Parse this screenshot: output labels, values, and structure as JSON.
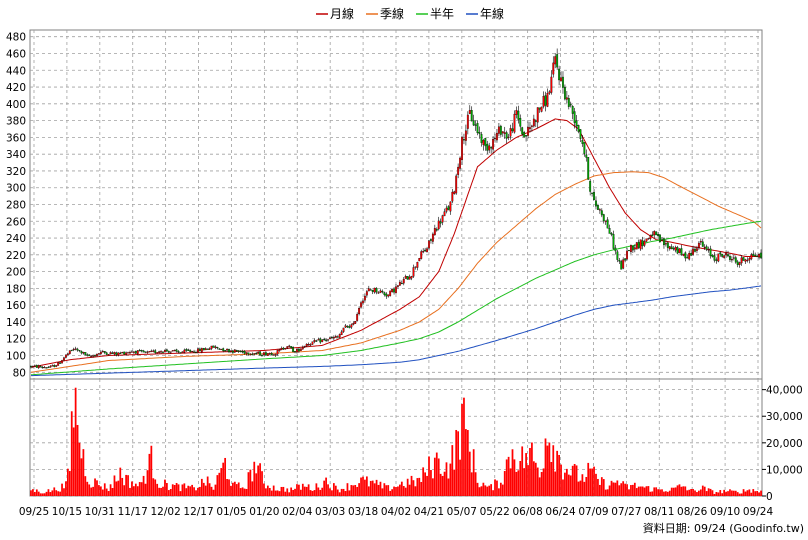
{
  "chart_data": {
    "type": "candlestick",
    "legend": [
      {
        "label": "月線",
        "color": "#c00000"
      },
      {
        "label": "季線",
        "color": "#e87020"
      },
      {
        "label": "半年",
        "color": "#20c020"
      },
      {
        "label": "年線",
        "color": "#2050c0"
      }
    ],
    "footer": "資料日期: 09/24  (Goodinfo.tw)",
    "price_axis": {
      "ylim": [
        72,
        488
      ],
      "ticks": [
        480,
        460,
        440,
        420,
        400,
        380,
        360,
        340,
        320,
        300,
        280,
        260,
        240,
        220,
        200,
        180,
        160,
        140,
        120,
        100,
        80
      ]
    },
    "volume_axis": {
      "ylim": [
        0,
        44000
      ],
      "ticks": [
        "40,000",
        "30,000",
        "20,000",
        "10,000",
        "0"
      ],
      "tick_values": [
        40000,
        30000,
        20000,
        10000,
        0
      ]
    },
    "x_ticks": [
      "09/25",
      "10/15",
      "10/31",
      "11/17",
      "12/02",
      "12/17",
      "01/05",
      "01/20",
      "02/04",
      "03/03",
      "03/18",
      "04/02",
      "04/21",
      "05/07",
      "05/22",
      "06/08",
      "06/24",
      "07/09",
      "07/27",
      "08/11",
      "08/26",
      "09/10",
      "09/24"
    ],
    "colors": {
      "up": "#ff0000",
      "down": "#00aa00",
      "volume": "#ff0000",
      "grid": "#a0a0a0"
    },
    "price_keypoints": [
      [
        0,
        87
      ],
      [
        10,
        86
      ],
      [
        14,
        90
      ],
      [
        18,
        100
      ],
      [
        22,
        108
      ],
      [
        26,
        104
      ],
      [
        30,
        98
      ],
      [
        36,
        104
      ],
      [
        44,
        102
      ],
      [
        52,
        105
      ],
      [
        60,
        103
      ],
      [
        68,
        106
      ],
      [
        76,
        104
      ],
      [
        86,
        106
      ],
      [
        94,
        110
      ],
      [
        102,
        106
      ],
      [
        110,
        104
      ],
      [
        118,
        102
      ],
      [
        126,
        103
      ],
      [
        132,
        112
      ],
      [
        136,
        104
      ],
      [
        142,
        114
      ],
      [
        150,
        118
      ],
      [
        158,
        122
      ],
      [
        162,
        134
      ],
      [
        166,
        136
      ],
      [
        170,
        165
      ],
      [
        174,
        178
      ],
      [
        178,
        178
      ],
      [
        184,
        172
      ],
      [
        190,
        185
      ],
      [
        196,
        198
      ],
      [
        200,
        218
      ],
      [
        204,
        228
      ],
      [
        206,
        238
      ],
      [
        208,
        250
      ],
      [
        212,
        265
      ],
      [
        216,
        280
      ],
      [
        218,
        300
      ],
      [
        222,
        355
      ],
      [
        226,
        388
      ],
      [
        230,
        368
      ],
      [
        234,
        348
      ],
      [
        238,
        356
      ],
      [
        242,
        370
      ],
      [
        246,
        360
      ],
      [
        250,
        388
      ],
      [
        254,
        360
      ],
      [
        258,
        375
      ],
      [
        262,
        395
      ],
      [
        266,
        408
      ],
      [
        270,
        452
      ],
      [
        272,
        435
      ],
      [
        276,
        405
      ],
      [
        280,
        384
      ],
      [
        284,
        355
      ],
      [
        286,
        330
      ],
      [
        288,
        300
      ],
      [
        290,
        282
      ],
      [
        294,
        270
      ],
      [
        298,
        248
      ],
      [
        302,
        215
      ],
      [
        304,
        205
      ],
      [
        308,
        228
      ],
      [
        312,
        232
      ],
      [
        316,
        236
      ],
      [
        320,
        246
      ],
      [
        324,
        236
      ],
      [
        328,
        230
      ],
      [
        332,
        228
      ],
      [
        336,
        218
      ],
      [
        340,
        222
      ],
      [
        344,
        235
      ],
      [
        348,
        225
      ],
      [
        352,
        216
      ],
      [
        356,
        220
      ],
      [
        360,
        218
      ],
      [
        364,
        210
      ],
      [
        368,
        216
      ],
      [
        372,
        220
      ],
      [
        376,
        218
      ]
    ],
    "moving_averages": [
      {
        "name": "月線",
        "color": "#c00000",
        "points": [
          [
            0,
            86
          ],
          [
            20,
            95
          ],
          [
            40,
            100
          ],
          [
            80,
            103
          ],
          [
            120,
            106
          ],
          [
            150,
            112
          ],
          [
            170,
            130
          ],
          [
            190,
            155
          ],
          [
            200,
            170
          ],
          [
            210,
            200
          ],
          [
            218,
            245
          ],
          [
            224,
            285
          ],
          [
            230,
            325
          ],
          [
            240,
            345
          ],
          [
            250,
            360
          ],
          [
            260,
            370
          ],
          [
            270,
            382
          ],
          [
            276,
            380
          ],
          [
            282,
            370
          ],
          [
            290,
            335
          ],
          [
            298,
            300
          ],
          [
            306,
            270
          ],
          [
            314,
            250
          ],
          [
            322,
            238
          ],
          [
            330,
            235
          ],
          [
            340,
            230
          ],
          [
            350,
            226
          ],
          [
            360,
            222
          ],
          [
            368,
            218
          ],
          [
            376,
            218
          ]
        ]
      },
      {
        "name": "季線",
        "color": "#e87020",
        "points": [
          [
            0,
            80
          ],
          [
            40,
            94
          ],
          [
            80,
            99
          ],
          [
            120,
            102
          ],
          [
            150,
            106
          ],
          [
            170,
            115
          ],
          [
            190,
            130
          ],
          [
            200,
            140
          ],
          [
            210,
            155
          ],
          [
            220,
            180
          ],
          [
            230,
            210
          ],
          [
            240,
            235
          ],
          [
            250,
            255
          ],
          [
            260,
            275
          ],
          [
            270,
            292
          ],
          [
            280,
            304
          ],
          [
            290,
            314
          ],
          [
            300,
            318
          ],
          [
            310,
            319
          ],
          [
            318,
            318
          ],
          [
            326,
            312
          ],
          [
            334,
            302
          ],
          [
            344,
            290
          ],
          [
            354,
            278
          ],
          [
            364,
            268
          ],
          [
            372,
            260
          ],
          [
            376,
            252
          ]
        ]
      },
      {
        "name": "半年",
        "color": "#20c020",
        "points": [
          [
            0,
            77
          ],
          [
            40,
            84
          ],
          [
            80,
            90
          ],
          [
            120,
            96
          ],
          [
            150,
            100
          ],
          [
            170,
            106
          ],
          [
            190,
            115
          ],
          [
            200,
            120
          ],
          [
            210,
            128
          ],
          [
            220,
            140
          ],
          [
            230,
            154
          ],
          [
            240,
            168
          ],
          [
            250,
            180
          ],
          [
            260,
            192
          ],
          [
            270,
            202
          ],
          [
            280,
            212
          ],
          [
            290,
            220
          ],
          [
            300,
            226
          ],
          [
            310,
            231
          ],
          [
            320,
            236
          ],
          [
            330,
            240
          ],
          [
            340,
            245
          ],
          [
            350,
            250
          ],
          [
            360,
            254
          ],
          [
            370,
            258
          ],
          [
            376,
            260
          ]
        ]
      },
      {
        "name": "年線",
        "color": "#2050c0",
        "points": [
          [
            0,
            76
          ],
          [
            40,
            79
          ],
          [
            80,
            82
          ],
          [
            120,
            85
          ],
          [
            150,
            87
          ],
          [
            170,
            89
          ],
          [
            190,
            92
          ],
          [
            200,
            95
          ],
          [
            220,
            105
          ],
          [
            240,
            118
          ],
          [
            260,
            132
          ],
          [
            280,
            148
          ],
          [
            290,
            155
          ],
          [
            300,
            160
          ],
          [
            310,
            163
          ],
          [
            320,
            166
          ],
          [
            330,
            170
          ],
          [
            340,
            173
          ],
          [
            350,
            176
          ],
          [
            360,
            178
          ],
          [
            370,
            181
          ],
          [
            376,
            183
          ]
        ]
      }
    ],
    "volume_keypoints": [
      [
        0,
        2500
      ],
      [
        6,
        1500
      ],
      [
        12,
        2500
      ],
      [
        18,
        4000
      ],
      [
        20,
        12000
      ],
      [
        22,
        40000
      ],
      [
        24,
        30000
      ],
      [
        26,
        18000
      ],
      [
        28,
        12000
      ],
      [
        30,
        6000
      ],
      [
        34,
        5000
      ],
      [
        40,
        3000
      ],
      [
        46,
        9000
      ],
      [
        50,
        6000
      ],
      [
        56,
        4000
      ],
      [
        62,
        14000
      ],
      [
        66,
        5000
      ],
      [
        72,
        4000
      ],
      [
        78,
        3500
      ],
      [
        84,
        3000
      ],
      [
        90,
        6000
      ],
      [
        94,
        3000
      ],
      [
        100,
        13000
      ],
      [
        104,
        4000
      ],
      [
        110,
        3500
      ],
      [
        116,
        13000
      ],
      [
        120,
        5000
      ],
      [
        126,
        3000
      ],
      [
        134,
        2500
      ],
      [
        140,
        4000
      ],
      [
        146,
        3000
      ],
      [
        152,
        6000
      ],
      [
        158,
        2500
      ],
      [
        164,
        4000
      ],
      [
        170,
        6000
      ],
      [
        176,
        5000
      ],
      [
        184,
        3000
      ],
      [
        192,
        5000
      ],
      [
        200,
        6000
      ],
      [
        206,
        12000
      ],
      [
        210,
        14000
      ],
      [
        214,
        11000
      ],
      [
        218,
        16000
      ],
      [
        222,
        30000
      ],
      [
        226,
        20000
      ],
      [
        230,
        6000
      ],
      [
        236,
        3000
      ],
      [
        242,
        6000
      ],
      [
        248,
        18000
      ],
      [
        252,
        14000
      ],
      [
        258,
        16000
      ],
      [
        262,
        9000
      ],
      [
        266,
        27000
      ],
      [
        270,
        18000
      ],
      [
        274,
        12000
      ],
      [
        280,
        9000
      ],
      [
        284,
        7000
      ],
      [
        288,
        10000
      ],
      [
        292,
        6000
      ],
      [
        298,
        4000
      ],
      [
        302,
        6000
      ],
      [
        306,
        3500
      ],
      [
        312,
        4000
      ],
      [
        318,
        3000
      ],
      [
        324,
        2500
      ],
      [
        330,
        2500
      ],
      [
        336,
        4000
      ],
      [
        340,
        2000
      ],
      [
        346,
        3000
      ],
      [
        352,
        1500
      ],
      [
        358,
        2000
      ],
      [
        364,
        1500
      ],
      [
        370,
        2500
      ],
      [
        376,
        1800
      ]
    ]
  }
}
